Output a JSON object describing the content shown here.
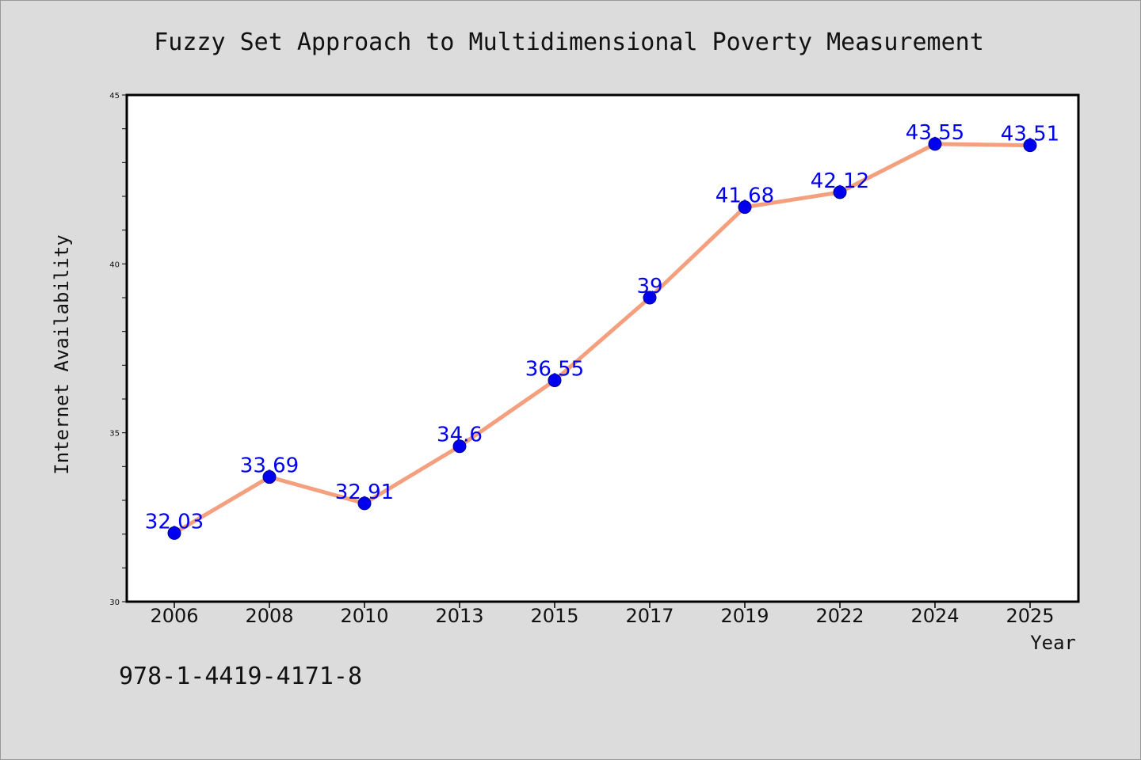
{
  "chart_data": {
    "type": "line",
    "title": "Fuzzy Set Approach to Multidimensional Poverty Measurement",
    "xlabel": "Year",
    "ylabel": "Internet Availability",
    "categories": [
      "2006",
      "2008",
      "2010",
      "2013",
      "2015",
      "2017",
      "2019",
      "2022",
      "2024",
      "2025"
    ],
    "values": [
      32.03,
      33.69,
      32.91,
      34.6,
      36.55,
      39,
      41.68,
      42.12,
      43.55,
      43.51
    ],
    "data_labels": [
      "32.03",
      "33.69",
      "32.91",
      "34.6",
      "36.55",
      "39",
      "41.68",
      "42.12",
      "43.55",
      "43.51"
    ],
    "ylim": [
      30,
      45
    ],
    "yticks": [
      "30",
      "35",
      "40",
      "45"
    ],
    "grid": false,
    "line_color": "#f4a07f",
    "marker_color": "#0000ee",
    "label_color": "#0000ee"
  },
  "footer": {
    "isbn": "978-1-4419-4171-8"
  }
}
